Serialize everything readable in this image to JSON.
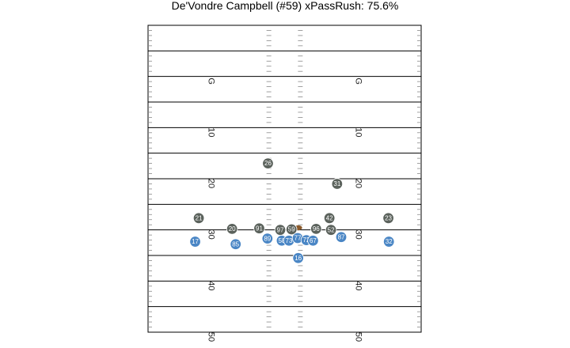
{
  "chart_data": {
    "type": "scatter",
    "title": "De'Vondre Campbell (#59) xPassRush: 75.6%",
    "field": {
      "x_range": [
        0,
        53.3
      ],
      "y_range": [
        110,
        50
      ],
      "yard_lines": [
        100,
        90,
        80,
        70,
        60,
        50
      ],
      "yard_number_labels": [
        {
          "y": 100,
          "text": "G"
        },
        {
          "y": 90,
          "text": "10"
        },
        {
          "y": 80,
          "text": "20"
        },
        {
          "y": 70,
          "text": "30"
        },
        {
          "y": 60,
          "text": "40"
        },
        {
          "y": 50,
          "text": "50"
        }
      ],
      "line_of_scrimmage_y": 70.1,
      "grid": false
    },
    "colors": {
      "defense": "#5b625c",
      "offense": "#4a86c5",
      "ball": "#8b5a2b",
      "outline": "#ffffff",
      "lines": "#000000",
      "hash": "#888888"
    },
    "series": [
      {
        "group": "defense",
        "points": [
          {
            "jersey": "26",
            "x": 23.4,
            "y": 83.0
          },
          {
            "jersey": "31",
            "x": 36.9,
            "y": 79.0
          },
          {
            "jersey": "21",
            "x": 9.9,
            "y": 72.3
          },
          {
            "jersey": "42",
            "x": 35.4,
            "y": 72.3
          },
          {
            "jersey": "23",
            "x": 46.9,
            "y": 72.3
          },
          {
            "jersey": "20",
            "x": 16.4,
            "y": 70.2
          },
          {
            "jersey": "91",
            "x": 21.7,
            "y": 70.3
          },
          {
            "jersey": "97",
            "x": 25.8,
            "y": 70.0
          },
          {
            "jersey": "59",
            "x": 28.0,
            "y": 70.1
          },
          {
            "jersey": "96",
            "x": 32.8,
            "y": 70.2
          },
          {
            "jersey": "52",
            "x": 35.7,
            "y": 70.0
          }
        ]
      },
      {
        "group": "offense",
        "points": [
          {
            "jersey": "17",
            "x": 9.2,
            "y": 67.7
          },
          {
            "jersey": "85",
            "x": 17.1,
            "y": 67.2
          },
          {
            "jersey": "89",
            "x": 23.3,
            "y": 68.3
          },
          {
            "jersey": "58",
            "x": 26.1,
            "y": 67.9
          },
          {
            "jersey": "73",
            "x": 27.5,
            "y": 67.9
          },
          {
            "jersey": "77",
            "x": 29.2,
            "y": 68.4
          },
          {
            "jersey": "72",
            "x": 30.9,
            "y": 68.0
          },
          {
            "jersey": "67",
            "x": 32.2,
            "y": 67.9
          },
          {
            "jersey": "87",
            "x": 37.7,
            "y": 68.6
          },
          {
            "jersey": "32",
            "x": 47.0,
            "y": 67.7
          },
          {
            "jersey": "16",
            "x": 29.3,
            "y": 64.5
          }
        ]
      }
    ],
    "ball": {
      "x": 29.3,
      "y": 70.1
    }
  }
}
